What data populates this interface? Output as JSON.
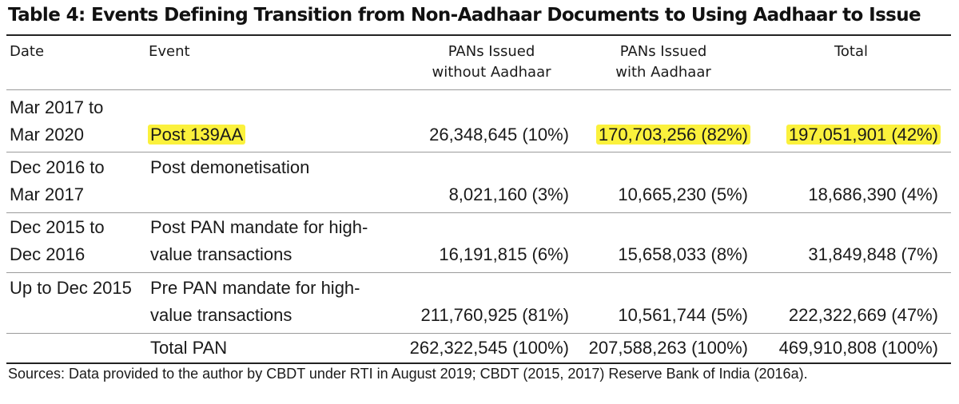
{
  "title": "Table 4: Events Defining Transition from Non-Aadhaar Documents to Using Aadhaar to Issue",
  "headers": {
    "date": "Date",
    "event": "Event",
    "without": "PANs Issued\nwithout Aadhaar",
    "with": "PANs Issued\nwith Aadhaar",
    "total": "Total"
  },
  "rows": [
    {
      "date": [
        "Mar 2017 to",
        "Mar 2020"
      ],
      "event": [
        "",
        "Post 139AA"
      ],
      "without": "26,348,645 (10%)",
      "with": "170,703,256 (82%)",
      "total": "197,051,901 (42%)"
    },
    {
      "date": [
        "Dec 2016 to",
        "Mar 2017"
      ],
      "event": [
        "Post demonetisation",
        ""
      ],
      "without": "8,021,160 (3%)",
      "with": "10,665,230 (5%)",
      "total": "18,686,390 (4%)"
    },
    {
      "date": [
        "Dec 2015 to",
        "Dec 2016"
      ],
      "event": [
        "Post PAN mandate for high-",
        "value transactions"
      ],
      "without": "16,191,815 (6%)",
      "with": "15,658,033 (8%)",
      "total": "31,849,848 (7%)"
    },
    {
      "date": [
        "Up to Dec 2015",
        ""
      ],
      "event": [
        "Pre PAN mandate for high-",
        "value transactions"
      ],
      "without": "211,760,925 (81%)",
      "with": "10,561,744 (5%)",
      "total": "222,322,669 (47%)"
    }
  ],
  "total_row": {
    "label": "Total PAN",
    "without": "262,322,545 (100%)",
    "with": "207,588,263 (100%)",
    "total": "469,910,808 (100%)"
  },
  "source": "Sources: Data provided to the author by CBDT under RTI in August 2019; CBDT (2015, 2017) Reserve Bank of India (2016a).",
  "colors": {
    "highlight": "#fbf13c",
    "rule": "#222222",
    "divider": "#9a9a9a"
  }
}
